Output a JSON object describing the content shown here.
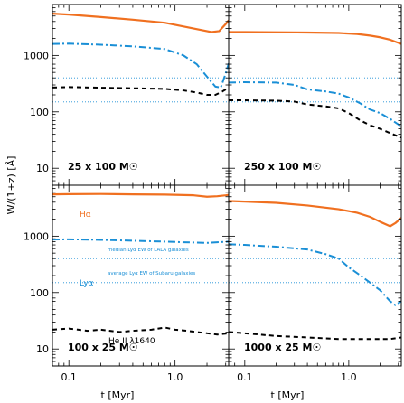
{
  "chart_data": {
    "type": "line",
    "ylabel": "W/(1+z) [Å]",
    "xlabel": "t [Myr]",
    "x_scale": "log",
    "y_scale": "log",
    "xlim": [
      0.07,
      3.2
    ],
    "ylim": [
      5,
      8000
    ],
    "x_ticks": [
      {
        "value": 0.1,
        "label": "0.1"
      },
      {
        "value": 1.0,
        "label": "1.0"
      }
    ],
    "y_ticks": [
      {
        "value": 10,
        "label": "10"
      },
      {
        "value": 100,
        "label": "100"
      },
      {
        "value": 1000,
        "label": "1000"
      }
    ],
    "reference_lines": [
      {
        "key": "median",
        "value": 400,
        "label": "median Lyα EW of LALA galaxies",
        "color": "#1a8fd6"
      },
      {
        "key": "average",
        "value": 150,
        "label": "average Lyα EW of Subaru galaxies",
        "color": "#1a8fd6"
      }
    ],
    "series_styles": {
      "halpha": {
        "name": "Hα",
        "color": "#f07020",
        "dash": "none",
        "width": 2.2
      },
      "lya": {
        "name": "Lyα",
        "color": "#1a8fd6",
        "dash": "8,3,2,3",
        "width": 2.0
      },
      "heii": {
        "name": "He II λ1640",
        "color": "#000000",
        "dash": "5,4",
        "width": 2.0
      }
    },
    "panels": [
      {
        "label": "25 x 100 M☉",
        "series": {
          "halpha": {
            "x": [
              0.07,
              0.1,
              0.2,
              0.4,
              0.8,
              1.5,
              2.2,
              2.6,
              3.0,
              3.2
            ],
            "y": [
              5500,
              5300,
              4800,
              4300,
              3800,
              3000,
              2600,
              2700,
              3600,
              4200
            ]
          },
          "lya": {
            "x": [
              0.07,
              0.1,
              0.2,
              0.4,
              0.8,
              1.2,
              1.6,
              2.0,
              2.4,
              2.7,
              3.0,
              3.2
            ],
            "y": [
              1600,
              1620,
              1550,
              1450,
              1300,
              1000,
              700,
              420,
              280,
              270,
              480,
              720
            ]
          },
          "heii": {
            "x": [
              0.07,
              0.1,
              0.2,
              0.4,
              0.8,
              1.2,
              1.6,
              2.0,
              2.4,
              2.8,
              3.2
            ],
            "y": [
              270,
              275,
              268,
              262,
              255,
              240,
              220,
              200,
              200,
              230,
              270
            ]
          }
        }
      },
      {
        "label": "250 x 100 M☉",
        "series": {
          "halpha": {
            "x": [
              0.07,
              0.1,
              0.2,
              0.4,
              0.8,
              1.2,
              1.6,
              2.0,
              2.5,
              3.2
            ],
            "y": [
              2600,
              2600,
              2580,
              2550,
              2500,
              2400,
              2250,
              2100,
              1900,
              1600
            ]
          },
          "lya": {
            "x": [
              0.07,
              0.1,
              0.2,
              0.3,
              0.4,
              0.6,
              0.8,
              1.0,
              1.3,
              1.6,
              2.0,
              2.5,
              3.2
            ],
            "y": [
              330,
              335,
              330,
              300,
              250,
              230,
              210,
              180,
              140,
              110,
              95,
              75,
              55
            ]
          },
          "heii": {
            "x": [
              0.07,
              0.1,
              0.2,
              0.3,
              0.4,
              0.6,
              0.8,
              1.0,
              1.3,
              1.6,
              2.0,
              2.5,
              3.2
            ],
            "y": [
              160,
              160,
              158,
              152,
              135,
              125,
              115,
              95,
              70,
              58,
              50,
              42,
              35
            ]
          }
        }
      },
      {
        "label": "100 x 25 M☉",
        "series": {
          "halpha": {
            "x": [
              0.07,
              0.1,
              0.2,
              0.4,
              0.8,
              1.5,
              2.0,
              2.5,
              3.0,
              3.2
            ],
            "y": [
              5500,
              5550,
              5600,
              5500,
              5450,
              5300,
              5000,
              5100,
              5300,
              5400
            ]
          },
          "lya": {
            "x": [
              0.07,
              0.1,
              0.2,
              0.4,
              0.8,
              1.2,
              1.6,
              2.0,
              2.5,
              3.2
            ],
            "y": [
              870,
              880,
              860,
              830,
              800,
              780,
              770,
              760,
              780,
              800
            ]
          },
          "heii": {
            "x": [
              0.07,
              0.1,
              0.15,
              0.2,
              0.3,
              0.4,
              0.6,
              0.8,
              1.0,
              1.3,
              1.6,
              2.0,
              2.5,
              3.2
            ],
            "y": [
              22,
              23,
              21,
              22,
              20,
              21,
              22,
              24,
              22,
              21,
              20,
              19,
              18,
              19
            ]
          }
        }
      },
      {
        "label": "1000 x 25 M☉",
        "series": {
          "halpha": {
            "x": [
              0.07,
              0.1,
              0.2,
              0.4,
              0.8,
              1.2,
              1.6,
              2.0,
              2.5,
              2.8,
              3.2
            ],
            "y": [
              4200,
              4100,
              3900,
              3500,
              3000,
              2600,
              2200,
              1800,
              1500,
              1700,
              2100
            ]
          },
          "lya": {
            "x": [
              0.07,
              0.1,
              0.2,
              0.4,
              0.6,
              0.8,
              1.0,
              1.3,
              1.6,
              2.0,
              2.5,
              2.8,
              3.2
            ],
            "y": [
              720,
              700,
              650,
              580,
              480,
              400,
              280,
              200,
              150,
              110,
              70,
              60,
              70
            ]
          },
          "heii": {
            "x": [
              0.07,
              0.1,
              0.2,
              0.4,
              0.8,
              1.2,
              1.6,
              2.0,
              2.5,
              3.2
            ],
            "y": [
              20,
              19,
              17,
              16,
              15,
              15,
              15,
              15,
              15,
              16
            ]
          }
        }
      }
    ]
  }
}
